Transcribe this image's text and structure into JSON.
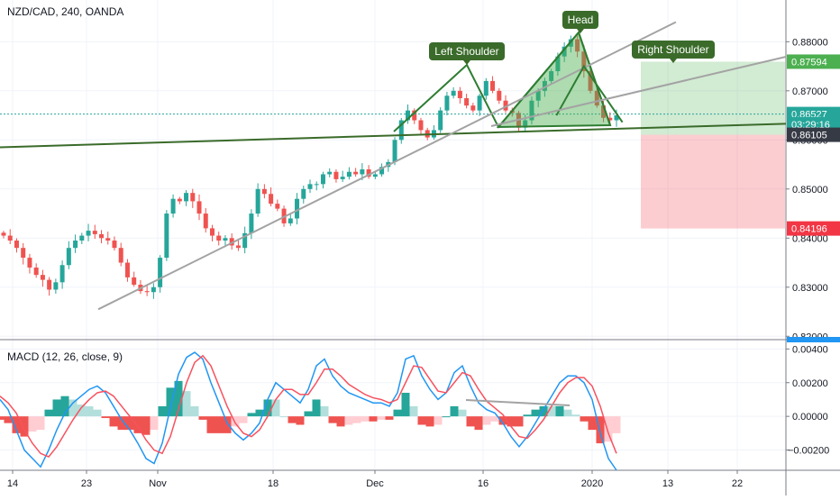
{
  "chart_data": [
    {
      "type": "candlestick",
      "title": "NZD/CAD, 240, OANDA",
      "ylim": [
        0.8195,
        0.8885
      ],
      "x_ticks": [
        "14",
        "23",
        "Nov",
        "18",
        "Dec",
        "16",
        "2020",
        "13",
        "22"
      ],
      "y_ticks": [
        "0.82000",
        "0.83000",
        "0.84000",
        "0.85000",
        "0.86000",
        "0.87000",
        "0.88000"
      ],
      "price_labels": [
        {
          "text": "0.87594",
          "value": 0.87594,
          "color": "#4caf50"
        },
        {
          "text": "0.86527",
          "value": 0.86527,
          "color": "#26a69a"
        },
        {
          "text": "03:29:16",
          "value": 0.8632,
          "color": "#26a69a"
        },
        {
          "text": "0.86105",
          "value": 0.86105,
          "color": "#363a45"
        },
        {
          "text": "0.84196",
          "value": 0.84196,
          "color": "#f23645"
        }
      ],
      "annotations": [
        "Head",
        "Left Shoulder",
        "Right Shoulder"
      ],
      "close_series": [
        0.8405,
        0.8395,
        0.838,
        0.836,
        0.834,
        0.8325,
        0.8315,
        0.8295,
        0.831,
        0.8345,
        0.838,
        0.8395,
        0.8405,
        0.8415,
        0.8408,
        0.84,
        0.8395,
        0.838,
        0.835,
        0.832,
        0.8305,
        0.8292,
        0.829,
        0.83,
        0.836,
        0.845,
        0.848,
        0.8475,
        0.8492,
        0.8475,
        0.845,
        0.842,
        0.8405,
        0.8395,
        0.84,
        0.8385,
        0.838,
        0.841,
        0.845,
        0.85,
        0.849,
        0.847,
        0.846,
        0.843,
        0.844,
        0.848,
        0.85,
        0.851,
        0.851,
        0.853,
        0.8535,
        0.852,
        0.8525,
        0.8535,
        0.853,
        0.854,
        0.8525,
        0.853,
        0.8545,
        0.8555,
        0.86,
        0.864,
        0.866,
        0.864,
        0.862,
        0.8605,
        0.862,
        0.866,
        0.869,
        0.87,
        0.8685,
        0.867,
        0.866,
        0.869,
        0.872,
        0.87,
        0.868,
        0.866,
        0.8655,
        0.8625,
        0.864,
        0.868,
        0.87,
        0.872,
        0.874,
        0.877,
        0.879,
        0.8805,
        0.878,
        0.874,
        0.87,
        0.867,
        0.8645,
        0.864,
        0.865
      ],
      "pattern_lines": [
        {
          "name": "neckline",
          "from": [
            0,
            0.8585
          ],
          "to": [
            1,
            0.8633
          ]
        },
        {
          "name": "rising-trendline",
          "from": [
            0.125,
            0.8255
          ],
          "to": [
            0.86,
            0.884
          ]
        },
        {
          "name": "projected-right-shoulder",
          "points": [
            [
              0.708,
              0.865
            ],
            [
              0.743,
              0.875
            ],
            [
              0.792,
              0.8636
            ]
          ]
        }
      ],
      "risk_reward_box": {
        "entry": 0.86105,
        "target": 0.87594,
        "stop": 0.84196
      }
    },
    {
      "type": "line+histogram",
      "title": "MACD (12, 26, close, 9)",
      "ylim": [
        -0.0032,
        0.0045
      ],
      "y_ticks": [
        "0.00400",
        "0.00200",
        "0.00000",
        "−0.00200"
      ],
      "series": [
        {
          "name": "MACD",
          "color": "#2196f3",
          "values": [
            0.001,
            0.0004,
            -0.0008,
            -0.002,
            -0.0025,
            -0.003,
            -0.002,
            -0.0008,
            0.0002,
            0.0008,
            0.0012,
            0.0016,
            0.0018,
            0.0014,
            0.0006,
            -0.0002,
            -0.0008,
            -0.0016,
            -0.0025,
            -0.0028,
            -0.0016,
            0.0005,
            0.0025,
            0.0035,
            0.0038,
            0.0034,
            0.002,
            0.0008,
            -0.0004,
            -0.001,
            -0.0014,
            -0.001,
            -0.0004,
            0.001,
            0.002,
            0.0016,
            0.0012,
            0.0008,
            0.0016,
            0.003,
            0.0034,
            0.0024,
            0.0018,
            0.0014,
            0.0012,
            0.001,
            0.0008,
            0.0008,
            0.0006,
            0.0014,
            0.0034,
            0.0036,
            0.0024,
            0.0016,
            0.001,
            0.0014,
            0.0026,
            0.003,
            0.0018,
            0.0008,
            0.0004,
            0.0002,
            -0.0004,
            -0.0012,
            -0.0018,
            -0.0012,
            -0.0004,
            0.0004,
            0.0012,
            0.002,
            0.0024,
            0.0024,
            0.002,
            0.001,
            -0.001,
            -0.0025,
            -0.0032
          ]
        },
        {
          "name": "Signal",
          "color": "#f7525f",
          "values": [
            0.0012,
            0.0008,
            0.0002,
            -0.0008,
            -0.0016,
            -0.0022,
            -0.0024,
            -0.0018,
            -0.001,
            -0.0002,
            0.0005,
            0.001,
            0.0014,
            0.0015,
            0.0012,
            0.0006,
            0.0,
            -0.0006,
            -0.0014,
            -0.002,
            -0.0022,
            -0.0012,
            0.0004,
            0.002,
            0.0032,
            0.0036,
            0.003,
            0.0018,
            0.0006,
            -0.0004,
            -0.001,
            -0.0012,
            -0.0008,
            0.0,
            0.001,
            0.0016,
            0.0016,
            0.0013,
            0.0013,
            0.002,
            0.0028,
            0.0028,
            0.0024,
            0.0019,
            0.0016,
            0.0013,
            0.0011,
            0.001,
            0.0008,
            0.001,
            0.002,
            0.003,
            0.0029,
            0.0022,
            0.0015,
            0.0014,
            0.002,
            0.0026,
            0.0024,
            0.0016,
            0.0009,
            0.0005,
            0.0001,
            -0.0006,
            -0.0012,
            -0.0013,
            -0.0008,
            -0.0002,
            0.0006,
            0.0014,
            0.002,
            0.0023,
            0.0023,
            0.0018,
            0.0006,
            -0.001,
            -0.0022
          ]
        }
      ]
    }
  ]
}
